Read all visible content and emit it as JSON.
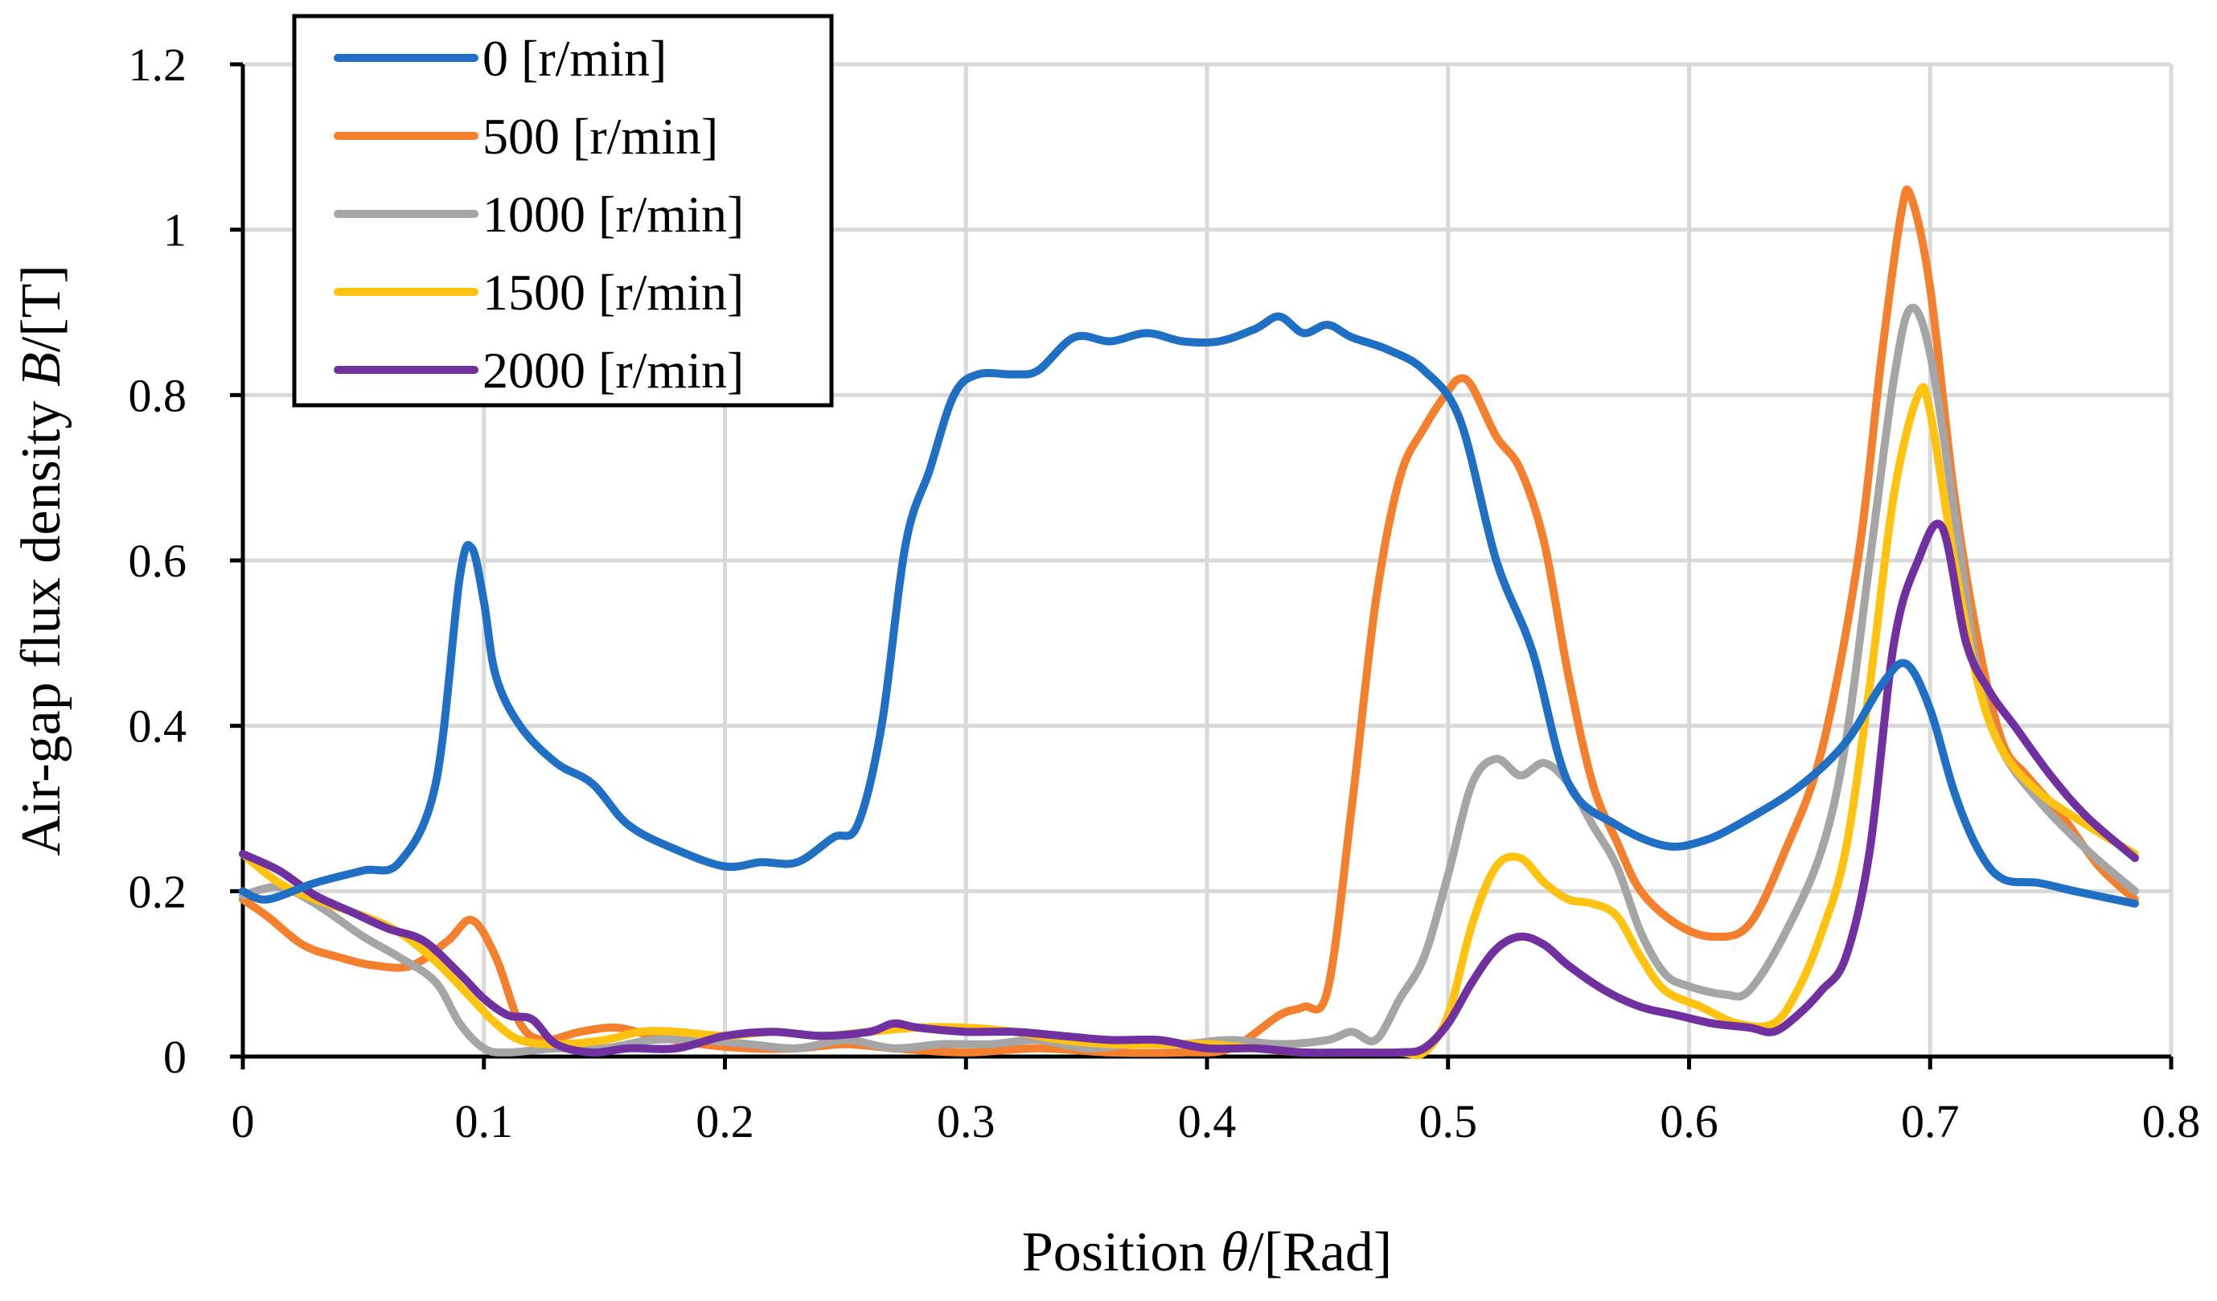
{
  "chart_data": {
    "type": "line",
    "xlabel_prefix": "Position ",
    "xlabel_var": "θ",
    "xlabel_suffix": "/[Rad]",
    "ylabel_prefix": "Air-gap flux density ",
    "ylabel_var": "B",
    "ylabel_suffix": "/[T]",
    "xlim": [
      0,
      0.8
    ],
    "ylim": [
      0,
      1.2
    ],
    "xticks": [
      0,
      0.1,
      0.2,
      0.3,
      0.4,
      0.5,
      0.6,
      0.7,
      0.8
    ],
    "xtick_labels": [
      "0",
      "0.1",
      "0.2",
      "0.3",
      "0.4",
      "0.5",
      "0.6",
      "0.7",
      "0.8"
    ],
    "yticks": [
      0,
      0.2,
      0.4,
      0.6,
      0.8,
      1.0,
      1.2
    ],
    "ytick_labels": [
      "0",
      "0.2",
      "0.4",
      "0.6",
      "0.8",
      "1",
      "1.2"
    ],
    "grid": true,
    "legend_position": "top-left",
    "series": [
      {
        "name": "0 [r/min]",
        "color": "#1f6fc5",
        "points": [
          [
            0,
            0.2
          ],
          [
            0.01,
            0.19
          ],
          [
            0.03,
            0.21
          ],
          [
            0.05,
            0.225
          ],
          [
            0.065,
            0.235
          ],
          [
            0.08,
            0.33
          ],
          [
            0.09,
            0.58
          ],
          [
            0.095,
            0.615
          ],
          [
            0.1,
            0.55
          ],
          [
            0.105,
            0.46
          ],
          [
            0.115,
            0.4
          ],
          [
            0.13,
            0.355
          ],
          [
            0.145,
            0.33
          ],
          [
            0.16,
            0.28
          ],
          [
            0.18,
            0.25
          ],
          [
            0.2,
            0.23
          ],
          [
            0.215,
            0.235
          ],
          [
            0.23,
            0.235
          ],
          [
            0.245,
            0.265
          ],
          [
            0.255,
            0.28
          ],
          [
            0.265,
            0.4
          ],
          [
            0.275,
            0.62
          ],
          [
            0.285,
            0.71
          ],
          [
            0.295,
            0.8
          ],
          [
            0.305,
            0.825
          ],
          [
            0.32,
            0.825
          ],
          [
            0.33,
            0.83
          ],
          [
            0.345,
            0.87
          ],
          [
            0.36,
            0.865
          ],
          [
            0.375,
            0.875
          ],
          [
            0.39,
            0.865
          ],
          [
            0.405,
            0.865
          ],
          [
            0.42,
            0.88
          ],
          [
            0.43,
            0.895
          ],
          [
            0.44,
            0.875
          ],
          [
            0.45,
            0.885
          ],
          [
            0.46,
            0.87
          ],
          [
            0.475,
            0.855
          ],
          [
            0.49,
            0.83
          ],
          [
            0.505,
            0.77
          ],
          [
            0.52,
            0.6
          ],
          [
            0.535,
            0.49
          ],
          [
            0.55,
            0.33
          ],
          [
            0.57,
            0.28
          ],
          [
            0.59,
            0.255
          ],
          [
            0.605,
            0.26
          ],
          [
            0.62,
            0.28
          ],
          [
            0.645,
            0.325
          ],
          [
            0.665,
            0.38
          ],
          [
            0.68,
            0.45
          ],
          [
            0.69,
            0.475
          ],
          [
            0.7,
            0.42
          ],
          [
            0.71,
            0.32
          ],
          [
            0.72,
            0.25
          ],
          [
            0.73,
            0.215
          ],
          [
            0.745,
            0.21
          ],
          [
            0.76,
            0.2
          ],
          [
            0.785,
            0.185
          ]
        ]
      },
      {
        "name": "500 [r/min]",
        "color": "#f47f2c",
        "points": [
          [
            0,
            0.19
          ],
          [
            0.01,
            0.17
          ],
          [
            0.025,
            0.135
          ],
          [
            0.04,
            0.12
          ],
          [
            0.055,
            0.11
          ],
          [
            0.07,
            0.11
          ],
          [
            0.085,
            0.14
          ],
          [
            0.095,
            0.165
          ],
          [
            0.105,
            0.12
          ],
          [
            0.115,
            0.04
          ],
          [
            0.125,
            0.02
          ],
          [
            0.14,
            0.03
          ],
          [
            0.155,
            0.035
          ],
          [
            0.17,
            0.025
          ],
          [
            0.19,
            0.015
          ],
          [
            0.21,
            0.01
          ],
          [
            0.23,
            0.01
          ],
          [
            0.25,
            0.015
          ],
          [
            0.27,
            0.01
          ],
          [
            0.3,
            0.005
          ],
          [
            0.33,
            0.01
          ],
          [
            0.36,
            0.005
          ],
          [
            0.39,
            0.005
          ],
          [
            0.41,
            0.01
          ],
          [
            0.43,
            0.05
          ],
          [
            0.44,
            0.06
          ],
          [
            0.45,
            0.08
          ],
          [
            0.46,
            0.3
          ],
          [
            0.47,
            0.55
          ],
          [
            0.48,
            0.7
          ],
          [
            0.49,
            0.76
          ],
          [
            0.5,
            0.805
          ],
          [
            0.505,
            0.82
          ],
          [
            0.51,
            0.81
          ],
          [
            0.52,
            0.75
          ],
          [
            0.53,
            0.71
          ],
          [
            0.54,
            0.62
          ],
          [
            0.55,
            0.46
          ],
          [
            0.56,
            0.33
          ],
          [
            0.57,
            0.26
          ],
          [
            0.58,
            0.2
          ],
          [
            0.595,
            0.16
          ],
          [
            0.61,
            0.145
          ],
          [
            0.625,
            0.16
          ],
          [
            0.64,
            0.25
          ],
          [
            0.655,
            0.37
          ],
          [
            0.67,
            0.6
          ],
          [
            0.68,
            0.85
          ],
          [
            0.688,
            1.02
          ],
          [
            0.692,
            1.04
          ],
          [
            0.7,
            0.93
          ],
          [
            0.71,
            0.68
          ],
          [
            0.72,
            0.5
          ],
          [
            0.73,
            0.38
          ],
          [
            0.74,
            0.34
          ],
          [
            0.755,
            0.29
          ],
          [
            0.77,
            0.23
          ],
          [
            0.785,
            0.19
          ]
        ]
      },
      {
        "name": "1000 [r/min]",
        "color": "#a5a5a5",
        "points": [
          [
            0,
            0.195
          ],
          [
            0.015,
            0.205
          ],
          [
            0.03,
            0.185
          ],
          [
            0.05,
            0.145
          ],
          [
            0.065,
            0.12
          ],
          [
            0.08,
            0.09
          ],
          [
            0.09,
            0.04
          ],
          [
            0.1,
            0.01
          ],
          [
            0.11,
            0.005
          ],
          [
            0.13,
            0.01
          ],
          [
            0.15,
            0.01
          ],
          [
            0.17,
            0.02
          ],
          [
            0.19,
            0.02
          ],
          [
            0.21,
            0.015
          ],
          [
            0.23,
            0.01
          ],
          [
            0.25,
            0.02
          ],
          [
            0.27,
            0.01
          ],
          [
            0.29,
            0.015
          ],
          [
            0.31,
            0.015
          ],
          [
            0.33,
            0.02
          ],
          [
            0.35,
            0.01
          ],
          [
            0.37,
            0.015
          ],
          [
            0.39,
            0.015
          ],
          [
            0.41,
            0.02
          ],
          [
            0.43,
            0.015
          ],
          [
            0.45,
            0.02
          ],
          [
            0.46,
            0.03
          ],
          [
            0.47,
            0.02
          ],
          [
            0.48,
            0.07
          ],
          [
            0.49,
            0.12
          ],
          [
            0.5,
            0.22
          ],
          [
            0.51,
            0.33
          ],
          [
            0.52,
            0.36
          ],
          [
            0.53,
            0.34
          ],
          [
            0.54,
            0.355
          ],
          [
            0.55,
            0.33
          ],
          [
            0.56,
            0.28
          ],
          [
            0.57,
            0.23
          ],
          [
            0.58,
            0.15
          ],
          [
            0.59,
            0.1
          ],
          [
            0.6,
            0.085
          ],
          [
            0.615,
            0.075
          ],
          [
            0.625,
            0.08
          ],
          [
            0.64,
            0.15
          ],
          [
            0.655,
            0.25
          ],
          [
            0.665,
            0.38
          ],
          [
            0.675,
            0.6
          ],
          [
            0.685,
            0.82
          ],
          [
            0.692,
            0.905
          ],
          [
            0.7,
            0.85
          ],
          [
            0.71,
            0.66
          ],
          [
            0.72,
            0.46
          ],
          [
            0.73,
            0.37
          ],
          [
            0.745,
            0.31
          ],
          [
            0.765,
            0.25
          ],
          [
            0.785,
            0.2
          ]
        ]
      },
      {
        "name": "1500 [r/min]",
        "color": "#ffc20e",
        "points": [
          [
            0,
            0.245
          ],
          [
            0.015,
            0.21
          ],
          [
            0.03,
            0.19
          ],
          [
            0.05,
            0.17
          ],
          [
            0.065,
            0.15
          ],
          [
            0.08,
            0.115
          ],
          [
            0.095,
            0.07
          ],
          [
            0.105,
            0.04
          ],
          [
            0.115,
            0.02
          ],
          [
            0.13,
            0.015
          ],
          [
            0.15,
            0.02
          ],
          [
            0.165,
            0.03
          ],
          [
            0.18,
            0.03
          ],
          [
            0.2,
            0.025
          ],
          [
            0.22,
            0.03
          ],
          [
            0.24,
            0.025
          ],
          [
            0.26,
            0.03
          ],
          [
            0.28,
            0.035
          ],
          [
            0.3,
            0.035
          ],
          [
            0.32,
            0.03
          ],
          [
            0.34,
            0.02
          ],
          [
            0.36,
            0.015
          ],
          [
            0.38,
            0.015
          ],
          [
            0.4,
            0.015
          ],
          [
            0.42,
            0.01
          ],
          [
            0.44,
            0.005
          ],
          [
            0.46,
            0.005
          ],
          [
            0.48,
            0.005
          ],
          [
            0.49,
            0.005
          ],
          [
            0.5,
            0.05
          ],
          [
            0.51,
            0.16
          ],
          [
            0.52,
            0.23
          ],
          [
            0.53,
            0.24
          ],
          [
            0.54,
            0.21
          ],
          [
            0.55,
            0.19
          ],
          [
            0.56,
            0.185
          ],
          [
            0.57,
            0.17
          ],
          [
            0.58,
            0.12
          ],
          [
            0.59,
            0.08
          ],
          [
            0.605,
            0.06
          ],
          [
            0.62,
            0.04
          ],
          [
            0.635,
            0.04
          ],
          [
            0.645,
            0.08
          ],
          [
            0.655,
            0.15
          ],
          [
            0.665,
            0.25
          ],
          [
            0.675,
            0.45
          ],
          [
            0.685,
            0.68
          ],
          [
            0.695,
            0.8
          ],
          [
            0.7,
            0.78
          ],
          [
            0.71,
            0.6
          ],
          [
            0.72,
            0.45
          ],
          [
            0.73,
            0.37
          ],
          [
            0.745,
            0.32
          ],
          [
            0.765,
            0.28
          ],
          [
            0.785,
            0.245
          ]
        ]
      },
      {
        "name": "2000 [r/min]",
        "color": "#7030a0",
        "points": [
          [
            0,
            0.245
          ],
          [
            0.015,
            0.225
          ],
          [
            0.03,
            0.195
          ],
          [
            0.045,
            0.175
          ],
          [
            0.06,
            0.155
          ],
          [
            0.075,
            0.14
          ],
          [
            0.09,
            0.1
          ],
          [
            0.1,
            0.07
          ],
          [
            0.11,
            0.05
          ],
          [
            0.12,
            0.045
          ],
          [
            0.13,
            0.015
          ],
          [
            0.145,
            0.005
          ],
          [
            0.16,
            0.01
          ],
          [
            0.18,
            0.01
          ],
          [
            0.2,
            0.025
          ],
          [
            0.22,
            0.03
          ],
          [
            0.24,
            0.025
          ],
          [
            0.26,
            0.03
          ],
          [
            0.27,
            0.04
          ],
          [
            0.28,
            0.035
          ],
          [
            0.3,
            0.03
          ],
          [
            0.32,
            0.03
          ],
          [
            0.34,
            0.025
          ],
          [
            0.36,
            0.02
          ],
          [
            0.38,
            0.02
          ],
          [
            0.4,
            0.01
          ],
          [
            0.42,
            0.01
          ],
          [
            0.44,
            0.005
          ],
          [
            0.46,
            0.005
          ],
          [
            0.48,
            0.005
          ],
          [
            0.49,
            0.01
          ],
          [
            0.5,
            0.04
          ],
          [
            0.51,
            0.09
          ],
          [
            0.52,
            0.13
          ],
          [
            0.53,
            0.145
          ],
          [
            0.54,
            0.135
          ],
          [
            0.55,
            0.11
          ],
          [
            0.565,
            0.08
          ],
          [
            0.58,
            0.06
          ],
          [
            0.595,
            0.05
          ],
          [
            0.61,
            0.04
          ],
          [
            0.625,
            0.035
          ],
          [
            0.635,
            0.03
          ],
          [
            0.645,
            0.05
          ],
          [
            0.655,
            0.08
          ],
          [
            0.665,
            0.12
          ],
          [
            0.675,
            0.25
          ],
          [
            0.685,
            0.5
          ],
          [
            0.695,
            0.6
          ],
          [
            0.705,
            0.64
          ],
          [
            0.715,
            0.5
          ],
          [
            0.725,
            0.44
          ],
          [
            0.735,
            0.4
          ],
          [
            0.75,
            0.34
          ],
          [
            0.765,
            0.29
          ],
          [
            0.785,
            0.24
          ]
        ]
      }
    ]
  }
}
